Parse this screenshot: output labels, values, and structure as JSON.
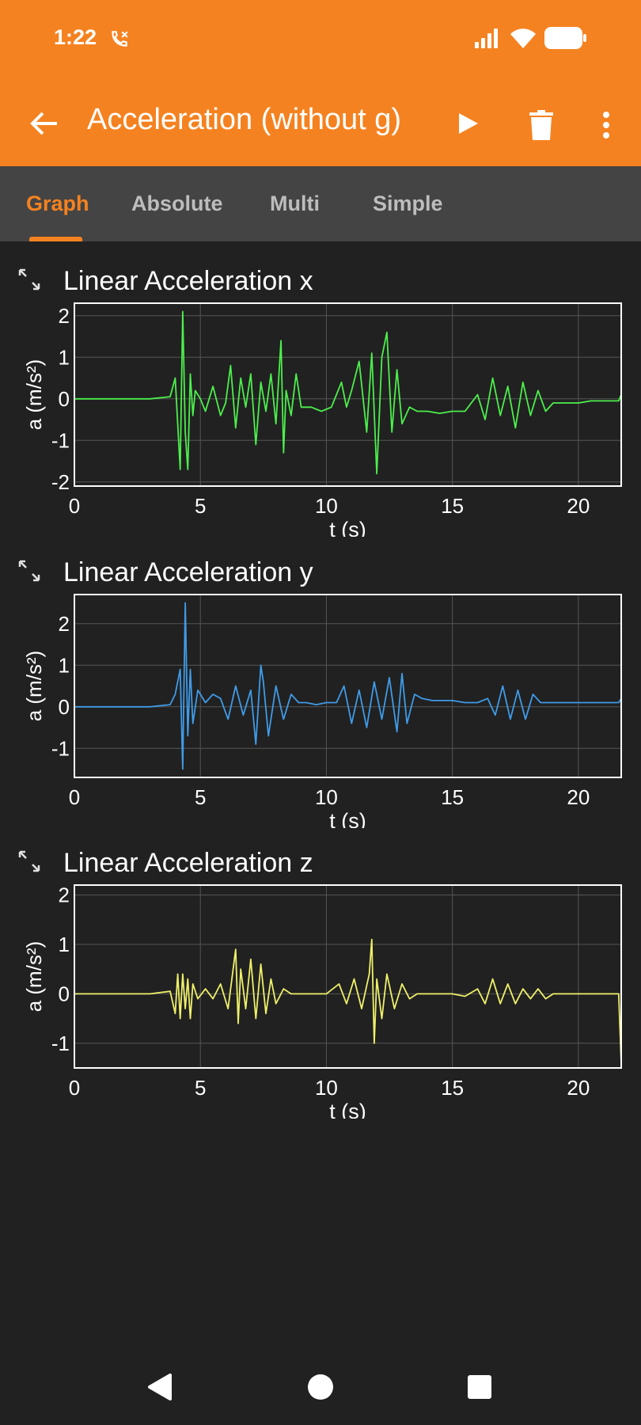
{
  "status_bar": {
    "time": "1:22",
    "icons": [
      "wifi-calling-icon",
      "signal-icon",
      "wifi-icon",
      "battery-icon"
    ]
  },
  "app_bar": {
    "title": "Acceleration (without g)",
    "icons": [
      "back-arrow-icon",
      "play-icon",
      "trash-icon",
      "more-vert-icon"
    ]
  },
  "tabs": [
    {
      "label": "Graph",
      "active": true
    },
    {
      "label": "Absolute",
      "active": false
    },
    {
      "label": "Multi",
      "active": false
    },
    {
      "label": "Simple",
      "active": false
    }
  ],
  "colors": {
    "accent": "#f58220",
    "background": "#212121",
    "tab_bar": "#444444",
    "x_series": "#4cef4c",
    "y_series": "#3f9be8",
    "z_series": "#eef06a"
  },
  "chart_data": [
    {
      "type": "line",
      "title": "Linear Acceleration x",
      "xlabel": "t (s)",
      "ylabel": "a (m/s²)",
      "xlim": [
        0,
        21.7
      ],
      "ylim": [
        -2.1,
        2.3
      ],
      "xticks": [
        "0",
        "5",
        "10",
        "15",
        "20"
      ],
      "yticks": [
        "2",
        "1",
        "0",
        "-1",
        "-2"
      ],
      "xtick_values": [
        0,
        5,
        10,
        15,
        20
      ],
      "ytick_values": [
        2,
        1,
        0,
        -1,
        -2
      ],
      "grid": true,
      "color": "#4cef4c",
      "series": [
        {
          "x": [
            0,
            1,
            2,
            3,
            3.8,
            4.0,
            4.2,
            4.3,
            4.4,
            4.5,
            4.6,
            4.7,
            4.8,
            5.0,
            5.2,
            5.5,
            5.8,
            6.0,
            6.2,
            6.4,
            6.6,
            6.8,
            7.0,
            7.2,
            7.4,
            7.6,
            7.8,
            8.0,
            8.2,
            8.3,
            8.4,
            8.6,
            8.8,
            9.0,
            9.4,
            9.8,
            10.2,
            10.6,
            10.8,
            11.0,
            11.3,
            11.6,
            11.8,
            12.0,
            12.2,
            12.4,
            12.6,
            12.8,
            13.0,
            13.3,
            13.6,
            14.0,
            14.5,
            15.0,
            15.5,
            16.0,
            16.3,
            16.6,
            16.9,
            17.2,
            17.5,
            17.8,
            18.1,
            18.4,
            18.7,
            19.0,
            19.5,
            20.0,
            20.5,
            21.0,
            21.6,
            21.7
          ],
          "y": [
            0,
            0,
            0,
            0,
            0.05,
            0.5,
            -1.7,
            2.1,
            -0.8,
            -1.7,
            0.6,
            -0.4,
            0.2,
            0.0,
            -0.3,
            0.3,
            -0.4,
            -0.1,
            0.8,
            -0.7,
            0.5,
            -0.2,
            0.6,
            -1.1,
            0.4,
            -0.3,
            0.6,
            -0.6,
            1.4,
            -1.3,
            0.2,
            -0.4,
            0.6,
            -0.2,
            -0.2,
            -0.3,
            -0.2,
            0.4,
            -0.2,
            0.2,
            0.9,
            -0.8,
            1.1,
            -1.8,
            1.0,
            1.6,
            -0.8,
            0.7,
            -0.6,
            -0.2,
            -0.3,
            -0.3,
            -0.35,
            -0.3,
            -0.3,
            0.1,
            -0.5,
            0.5,
            -0.4,
            0.3,
            -0.7,
            0.4,
            -0.4,
            0.2,
            -0.3,
            -0.1,
            -0.1,
            -0.1,
            -0.05,
            -0.05,
            -0.05,
            0.1
          ]
        }
      ]
    },
    {
      "type": "line",
      "title": "Linear Acceleration y",
      "xlabel": "t (s)",
      "ylabel": "a (m/s²)",
      "xlim": [
        0,
        21.7
      ],
      "ylim": [
        -1.7,
        2.7
      ],
      "xticks": [
        "0",
        "5",
        "10",
        "15",
        "20"
      ],
      "yticks": [
        "2",
        "1",
        "0",
        "-1"
      ],
      "xtick_values": [
        0,
        5,
        10,
        15,
        20
      ],
      "ytick_values": [
        2,
        1,
        0,
        -1
      ],
      "grid": true,
      "color": "#3f9be8",
      "series": [
        {
          "x": [
            0,
            1,
            2,
            3,
            3.8,
            4.0,
            4.2,
            4.3,
            4.4,
            4.5,
            4.6,
            4.7,
            4.9,
            5.2,
            5.5,
            5.8,
            6.1,
            6.4,
            6.7,
            7.0,
            7.2,
            7.4,
            7.5,
            7.7,
            8.0,
            8.3,
            8.6,
            8.9,
            9.2,
            9.6,
            10.0,
            10.4,
            10.7,
            11.0,
            11.3,
            11.6,
            11.9,
            12.2,
            12.5,
            12.8,
            13.0,
            13.2,
            13.5,
            13.8,
            14.2,
            14.6,
            15.0,
            15.5,
            16.0,
            16.4,
            16.7,
            17.0,
            17.3,
            17.6,
            17.9,
            18.2,
            18.5,
            18.8,
            19.2,
            19.8,
            20.4,
            21.0,
            21.6,
            21.7
          ],
          "y": [
            0,
            0,
            0,
            0,
            0.05,
            0.3,
            0.9,
            -1.5,
            2.5,
            -0.7,
            0.9,
            -0.4,
            0.4,
            0.1,
            0.3,
            0.2,
            -0.3,
            0.5,
            -0.2,
            0.4,
            -0.9,
            1.0,
            0.6,
            -0.7,
            0.5,
            -0.3,
            0.3,
            0.1,
            0.1,
            0.05,
            0.1,
            0.1,
            0.5,
            -0.4,
            0.4,
            -0.5,
            0.6,
            -0.3,
            0.7,
            -0.6,
            0.8,
            -0.4,
            0.3,
            0.2,
            0.15,
            0.15,
            0.15,
            0.1,
            0.1,
            0.2,
            -0.2,
            0.5,
            -0.3,
            0.4,
            -0.3,
            0.3,
            0.1,
            0.1,
            0.1,
            0.1,
            0.1,
            0.1,
            0.1,
            0.2
          ]
        }
      ]
    },
    {
      "type": "line",
      "title": "Linear Acceleration z",
      "xlabel": "t (s)",
      "ylabel": "a (m/s²)",
      "xlim": [
        0,
        21.7
      ],
      "ylim": [
        -1.5,
        2.2
      ],
      "xticks": [
        "0",
        "5",
        "10",
        "15",
        "20"
      ],
      "yticks": [
        "2",
        "1",
        "0",
        "-1"
      ],
      "xtick_values": [
        0,
        5,
        10,
        15,
        20
      ],
      "ytick_values": [
        2,
        1,
        0,
        -1
      ],
      "grid": true,
      "color": "#eef06a",
      "series": [
        {
          "x": [
            0,
            1,
            2,
            3,
            3.8,
            4.0,
            4.1,
            4.2,
            4.3,
            4.4,
            4.5,
            4.6,
            4.7,
            4.9,
            5.2,
            5.5,
            5.8,
            6.1,
            6.4,
            6.5,
            6.6,
            6.8,
            7.0,
            7.2,
            7.4,
            7.6,
            7.8,
            8.0,
            8.3,
            8.6,
            9.0,
            9.5,
            10.0,
            10.5,
            10.8,
            11.1,
            11.4,
            11.7,
            11.8,
            11.9,
            12.0,
            12.2,
            12.4,
            12.7,
            13.0,
            13.3,
            13.6,
            14.0,
            14.5,
            15.0,
            15.5,
            16.0,
            16.3,
            16.6,
            16.9,
            17.2,
            17.5,
            17.8,
            18.1,
            18.4,
            18.7,
            19.0,
            19.5,
            20.0,
            20.5,
            21.0,
            21.6,
            21.7
          ],
          "y": [
            0,
            0,
            0,
            0,
            0.05,
            -0.4,
            0.4,
            -0.5,
            0.4,
            -0.3,
            0.3,
            -0.5,
            0.2,
            -0.1,
            0.1,
            -0.1,
            0.2,
            -0.3,
            0.9,
            -0.6,
            0.5,
            -0.3,
            0.7,
            -0.5,
            0.6,
            -0.4,
            0.3,
            -0.2,
            0.1,
            0.0,
            0.0,
            0.0,
            0.0,
            0.2,
            -0.2,
            0.3,
            -0.3,
            0.4,
            1.1,
            -1.0,
            0.3,
            -0.5,
            0.4,
            -0.3,
            0.2,
            -0.1,
            0.0,
            0.0,
            0.0,
            0.0,
            -0.05,
            0.1,
            -0.2,
            0.3,
            -0.2,
            0.2,
            -0.2,
            0.1,
            -0.1,
            0.1,
            -0.1,
            0.0,
            0.0,
            0.0,
            0.0,
            0.0,
            0.0,
            -1.4
          ]
        }
      ]
    }
  ]
}
